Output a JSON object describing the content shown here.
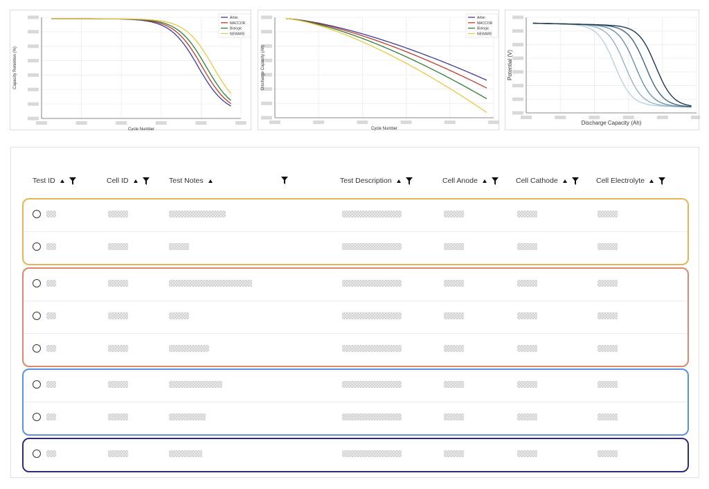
{
  "charts": [
    {
      "type": "line",
      "xlabel": "Cycle Number",
      "ylabel": "Capacity Retention (%)",
      "ticks_redacted": true,
      "legend_position": "top-right",
      "series": [
        {
          "name": "Arbin",
          "color": "#3a3a9c",
          "midpoint": 0.785
        },
        {
          "name": "MACCOR",
          "color": "#c0392b",
          "midpoint": 0.805
        },
        {
          "name": "Biologic",
          "color": "#2e7d32",
          "midpoint": 0.825
        },
        {
          "name": "NEWARE",
          "color": "#e8c842",
          "midpoint": 0.86
        }
      ]
    },
    {
      "type": "line",
      "xlabel": "Cycle Number",
      "ylabel": "Discharge Capacity (Ah)",
      "ticks_redacted": true,
      "legend_position": "top-right",
      "series": [
        {
          "name": "Arbin",
          "color": "#3a3a9c",
          "end_fraction": 0.37
        },
        {
          "name": "MACCOR",
          "color": "#c0392b",
          "end_fraction": 0.29
        },
        {
          "name": "Biologic",
          "color": "#2e7d32",
          "end_fraction": 0.18
        },
        {
          "name": "NEWARE",
          "color": "#e8c842",
          "end_fraction": 0.04
        }
      ]
    },
    {
      "type": "line",
      "xlabel": "Discharge Capacity (Ah)",
      "ylabel": "Potential (V)",
      "ticks_redacted": true,
      "curve_colors": [
        "#b7d2e2",
        "#8fb4cc",
        "#6690ad",
        "#3e6482",
        "#1e3550"
      ]
    }
  ],
  "table": {
    "columns": [
      {
        "key": "test_id",
        "label": "Test ID"
      },
      {
        "key": "cell_id",
        "label": "Cell ID"
      },
      {
        "key": "test_notes",
        "label": "Test Notes"
      },
      {
        "key": "test_description",
        "label": "Test Description"
      },
      {
        "key": "cell_anode",
        "label": "Cell Anode"
      },
      {
        "key": "cell_cathode",
        "label": "Cell Cathode"
      },
      {
        "key": "cell_electrolyte",
        "label": "Cell Electrolyte"
      }
    ],
    "groups": [
      {
        "border_color": "#e4b550",
        "rows": [
          {
            "test_id": "xxx",
            "cell_id": "xxxxxx",
            "test_notes": "xxxxxxxxxxxxxxxxx",
            "test_description": "xxxxxxxxxxxxxxxxxx",
            "cell_anode": "xxxxxx",
            "cell_cathode": "xxxxxx",
            "cell_electrolyte": "xxxxxx"
          },
          {
            "test_id": "xxx",
            "cell_id": "xxxxxx",
            "test_notes": "xxxxxx",
            "test_description": "xxxxxxxxxxxxxxxxxx",
            "cell_anode": "xxxxxx",
            "cell_cathode": "xxxxxx",
            "cell_electrolyte": "xxxxxx"
          }
        ]
      },
      {
        "border_color": "#df866a",
        "rows": [
          {
            "test_id": "xxx",
            "cell_id": "xxxxxx",
            "test_notes": "xxxxxxxxxxxxxxxxxxxxxxxxx",
            "test_description": "xxxxxxxxxxxxxxxxxx",
            "cell_anode": "xxxxxx",
            "cell_cathode": "xxxxxx",
            "cell_electrolyte": "xxxxxx"
          },
          {
            "test_id": "xxx",
            "cell_id": "xxxxxx",
            "test_notes": "xxxxxx",
            "test_description": "xxxxxxxxxxxxxxxxxx",
            "cell_anode": "xxxxxx",
            "cell_cathode": "xxxxxx",
            "cell_electrolyte": "xxxxxx"
          },
          {
            "test_id": "xxx",
            "cell_id": "xxxxxx",
            "test_notes": "xxxxxxxxxxxx",
            "test_description": "xxxxxxxxxxxxxxxxxx",
            "cell_anode": "xxxxxx",
            "cell_cathode": "xxxxxx",
            "cell_electrolyte": "xxxxxx"
          }
        ]
      },
      {
        "border_color": "#5b8fe0",
        "rows": [
          {
            "test_id": "xxx",
            "cell_id": "xxxxxx",
            "test_notes": "xxxxxxxxxxxxxxxx",
            "test_description": "xxxxxxxxxxxxxxxxxx",
            "cell_anode": "xxxxxx",
            "cell_cathode": "xxxxxx",
            "cell_electrolyte": "xxxxxx"
          },
          {
            "test_id": "xxx",
            "cell_id": "xxxxxx",
            "test_notes": "xxxxxxxxxxx",
            "test_description": "xxxxxxxxxxxxxxxxxx",
            "cell_anode": "xxxxxx",
            "cell_cathode": "xxxxxx",
            "cell_electrolyte": "xxxxxx"
          }
        ]
      },
      {
        "border_color": "#2d2a7a",
        "rows": [
          {
            "test_id": "xxx",
            "cell_id": "xxxxxx",
            "test_notes": "xxxxxxxxxx",
            "test_description": "xxxxxxxxxxxxxxxxxx",
            "cell_anode": "xxxxxx",
            "cell_cathode": "xxxxxx",
            "cell_electrolyte": "xxxxxx"
          }
        ]
      }
    ]
  }
}
